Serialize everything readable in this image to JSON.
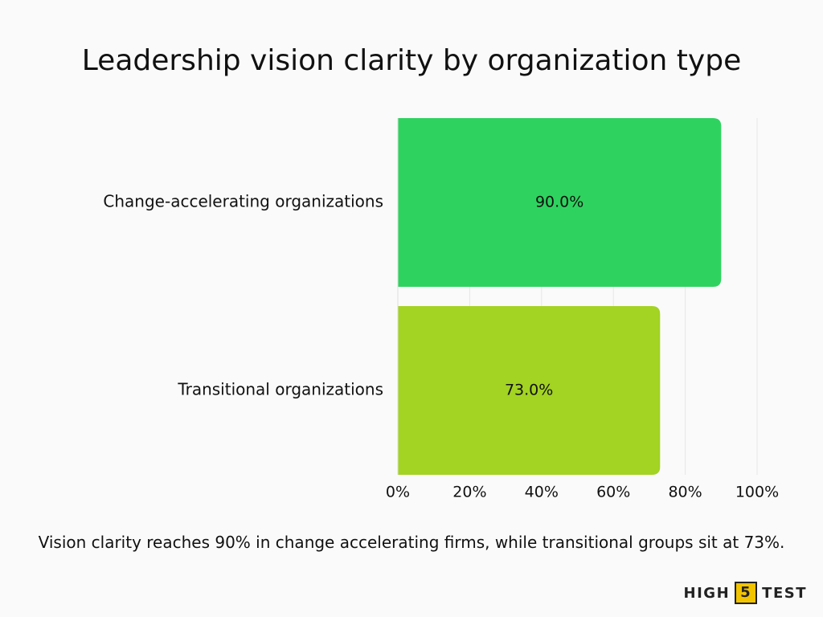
{
  "chart_data": {
    "type": "bar",
    "orientation": "horizontal",
    "title": "Leadership vision clarity by organization type",
    "categories": [
      "Change-accelerating organizations",
      "Transitional organizations"
    ],
    "values": [
      90,
      73
    ],
    "value_labels": [
      "90.0%",
      "73.0%"
    ],
    "colors": [
      "#2ed35f",
      "#a3d323"
    ],
    "xlim": [
      0,
      100
    ],
    "xticks": [
      {
        "value": 0,
        "label": "0%"
      },
      {
        "value": 20,
        "label": "20%"
      },
      {
        "value": 40,
        "label": "40%"
      },
      {
        "value": 60,
        "label": "60%"
      },
      {
        "value": 80,
        "label": "80%"
      },
      {
        "value": 100,
        "label": "100%"
      }
    ],
    "grid": true,
    "caption": "Vision clarity reaches 90% in change accelerating firms, while transitional groups sit at 73%."
  },
  "brand": {
    "left": "HIGH",
    "mark": "5",
    "right": "TEST"
  }
}
